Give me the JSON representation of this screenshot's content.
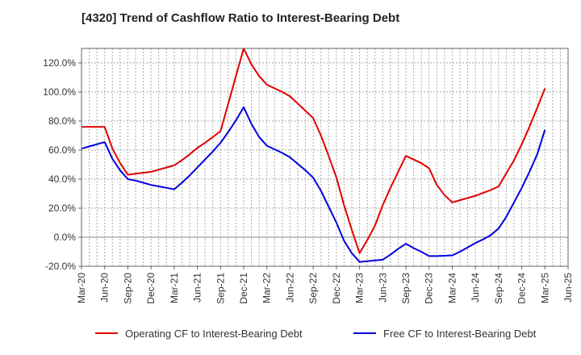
{
  "chart_data": {
    "type": "line",
    "title": "[4320]  Trend of Cashflow Ratio to Interest-Bearing Debt",
    "xlabel": "",
    "ylabel": "",
    "x_tick_labels": [
      "Mar-20",
      "Jun-20",
      "Sep-20",
      "Dec-20",
      "Mar-21",
      "Jun-21",
      "Sep-21",
      "Dec-21",
      "Mar-22",
      "Jun-22",
      "Sep-22",
      "Dec-22",
      "Mar-23",
      "Jun-23",
      "Sep-23",
      "Dec-23",
      "Mar-24",
      "Jun-24",
      "Sep-24",
      "Dec-24",
      "Mar-25",
      "Jun-25"
    ],
    "y_tick_labels": [
      "-20.0%",
      "0.0%",
      "20.0%",
      "40.0%",
      "60.0%",
      "80.0%",
      "100.0%",
      "120.0%"
    ],
    "ylim": [
      -20,
      130
    ],
    "y_ticks": [
      -20,
      0,
      20,
      40,
      60,
      80,
      100,
      120
    ],
    "grid": true,
    "legend_position": "bottom",
    "x": [
      "Mar-20",
      "Apr-20",
      "May-20",
      "Jun-20",
      "Jul-20",
      "Aug-20",
      "Sep-20",
      "Oct-20",
      "Nov-20",
      "Dec-20",
      "Jan-21",
      "Feb-21",
      "Mar-21",
      "Apr-21",
      "May-21",
      "Jun-21",
      "Jul-21",
      "Aug-21",
      "Sep-21",
      "Oct-21",
      "Nov-21",
      "Dec-21",
      "Jan-22",
      "Feb-22",
      "Mar-22",
      "Apr-22",
      "May-22",
      "Jun-22",
      "Jul-22",
      "Aug-22",
      "Sep-22",
      "Oct-22",
      "Nov-22",
      "Dec-22",
      "Jan-23",
      "Feb-23",
      "Mar-23",
      "Apr-23",
      "May-23",
      "Jun-23",
      "Jul-23",
      "Aug-23",
      "Sep-23",
      "Oct-23",
      "Nov-23",
      "Dec-23",
      "Jan-24",
      "Feb-24",
      "Mar-24",
      "Apr-24",
      "May-24",
      "Jun-24",
      "Jul-24",
      "Aug-24",
      "Sep-24",
      "Oct-24",
      "Nov-24",
      "Dec-24",
      "Jan-25",
      "Feb-25",
      "Mar-25"
    ],
    "series": [
      {
        "name": "Operating CF to Interest-Bearing Debt",
        "color": "#e00000",
        "values": [
          76,
          76,
          76,
          76,
          61,
          51,
          43,
          43.7,
          44.4,
          45,
          46.5,
          48,
          49.5,
          53,
          57,
          61.5,
          65,
          69,
          73,
          92,
          111,
          130,
          119,
          111,
          105,
          102.5,
          100,
          97,
          92,
          87,
          82,
          70,
          56,
          41,
          22,
          5,
          -11,
          -2,
          8,
          22,
          34,
          45,
          56,
          53.5,
          51,
          47.5,
          36,
          29,
          24,
          25.5,
          27,
          28.5,
          30.5,
          32.5,
          35,
          44,
          53,
          64,
          76,
          89,
          102.5
        ]
      },
      {
        "name": "Free CF to Interest-Bearing Debt",
        "color": "#0000dd",
        "values": [
          61,
          62.5,
          64,
          65.5,
          54,
          46,
          40,
          39,
          37.5,
          36,
          35,
          34,
          33,
          37.5,
          42.5,
          48,
          53.5,
          59,
          65,
          72.5,
          80.5,
          89.5,
          78,
          69,
          63,
          60.5,
          58,
          55,
          50.5,
          46,
          41,
          32,
          21,
          10,
          -2.5,
          -11,
          -17,
          -16.5,
          -16,
          -15.5,
          -12,
          -8,
          -4.5,
          -7.5,
          -10,
          -13,
          -13,
          -12.8,
          -12.5,
          -10,
          -7,
          -4,
          -1.5,
          1.5,
          6,
          14,
          24,
          34,
          45,
          57,
          74
        ]
      }
    ]
  },
  "legend": {
    "items": [
      {
        "label": "Operating CF to Interest-Bearing Debt",
        "color": "#e00000"
      },
      {
        "label": "Free CF to Interest-Bearing Debt",
        "color": "#0000dd"
      }
    ]
  }
}
